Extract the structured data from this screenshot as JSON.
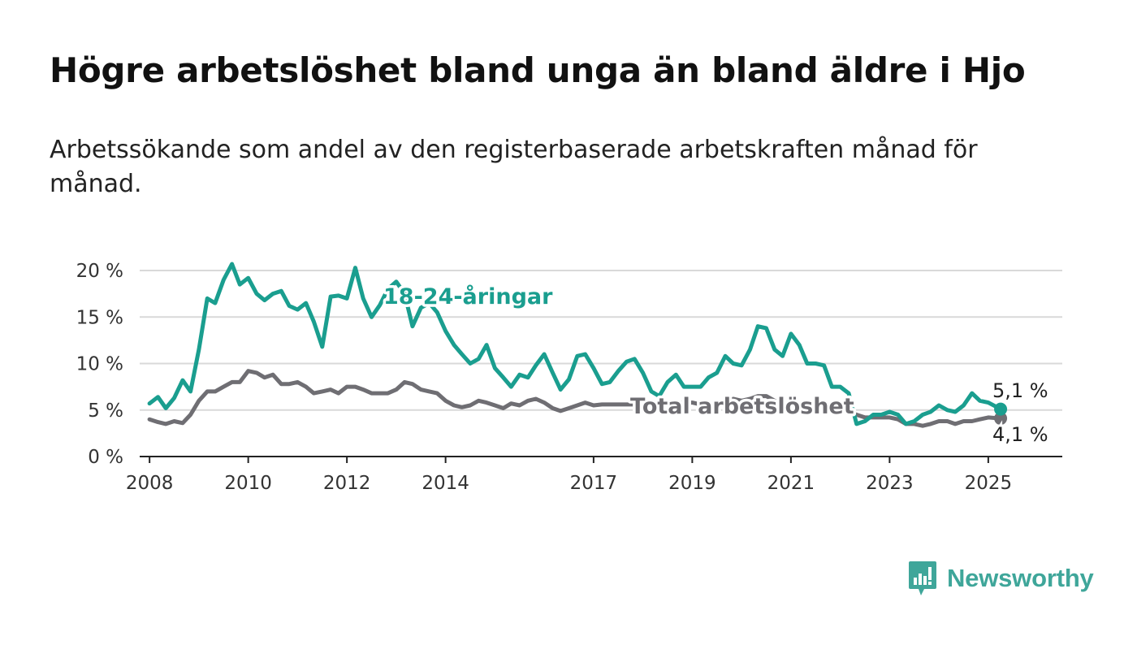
{
  "header": {
    "title": "Högre arbetslöshet bland unga än bland äldre i Hjo",
    "subtitle": "Arbetssökande som andel av den registerbaserade arbetskraften månad för månad."
  },
  "brand": {
    "name": "Newsworthy",
    "color": "#3fa69a",
    "icon": "bar-chart-speech-bubble-icon"
  },
  "chart_data": {
    "type": "line",
    "xlabel": "",
    "ylabel": "",
    "ylim": [
      0,
      20
    ],
    "xlim": [
      2007.8,
      2026.5
    ],
    "y_ticks": [
      {
        "value": 0,
        "label": "0 %"
      },
      {
        "value": 5,
        "label": "5 %"
      },
      {
        "value": 10,
        "label": "10 %"
      },
      {
        "value": 15,
        "label": "15 %"
      },
      {
        "value": 20,
        "label": "20 %"
      }
    ],
    "x_ticks": [
      {
        "value": 2008,
        "label": "2008"
      },
      {
        "value": 2010,
        "label": "2010"
      },
      {
        "value": 2012,
        "label": "2012"
      },
      {
        "value": 2014,
        "label": "2014"
      },
      {
        "value": 2017,
        "label": "2017"
      },
      {
        "value": 2019,
        "label": "2019"
      },
      {
        "value": 2021,
        "label": "2021"
      },
      {
        "value": 2023,
        "label": "2023"
      },
      {
        "value": 2025,
        "label": "2025"
      }
    ],
    "grid": true,
    "legend": "inline labels",
    "series": [
      {
        "name": "18-24-åringar",
        "color": "#1a9e8f",
        "end_label": "5,1 %",
        "x": [
          2008.0,
          2008.17,
          2008.33,
          2008.5,
          2008.67,
          2008.83,
          2009.0,
          2009.17,
          2009.33,
          2009.5,
          2009.67,
          2009.83,
          2010.0,
          2010.17,
          2010.33,
          2010.5,
          2010.67,
          2010.83,
          2011.0,
          2011.17,
          2011.33,
          2011.5,
          2011.67,
          2011.83,
          2012.0,
          2012.17,
          2012.33,
          2012.5,
          2012.67,
          2012.83,
          2013.0,
          2013.17,
          2013.33,
          2013.5,
          2013.67,
          2013.83,
          2014.0,
          2014.17,
          2014.33,
          2014.5,
          2014.67,
          2014.83,
          2015.0,
          2015.17,
          2015.33,
          2015.5,
          2015.67,
          2015.83,
          2016.0,
          2016.17,
          2016.33,
          2016.5,
          2016.67,
          2016.83,
          2017.0,
          2017.17,
          2017.33,
          2017.5,
          2017.67,
          2017.83,
          2018.0,
          2018.17,
          2018.33,
          2018.5,
          2018.67,
          2018.83,
          2019.0,
          2019.17,
          2019.33,
          2019.5,
          2019.67,
          2019.83,
          2020.0,
          2020.17,
          2020.33,
          2020.5,
          2020.67,
          2020.83,
          2021.0,
          2021.17,
          2021.33,
          2021.5,
          2021.67,
          2021.83,
          2022.0,
          2022.17,
          2022.33,
          2022.5,
          2022.67,
          2022.83,
          2023.0,
          2023.17,
          2023.33,
          2023.5,
          2023.67,
          2023.83,
          2024.0,
          2024.17,
          2024.33,
          2024.5,
          2024.67,
          2024.83,
          2025.0,
          2025.25
        ],
        "values": [
          5.7,
          6.4,
          5.2,
          6.3,
          8.2,
          7.0,
          11.5,
          17.0,
          16.5,
          19.0,
          20.7,
          18.5,
          19.2,
          17.5,
          16.8,
          17.5,
          17.8,
          16.2,
          15.8,
          16.5,
          14.5,
          11.8,
          17.2,
          17.3,
          17.0,
          20.3,
          17.0,
          15.0,
          16.3,
          18.0,
          18.8,
          17.5,
          14.0,
          16.0,
          16.5,
          15.5,
          13.5,
          12.0,
          11.0,
          10.0,
          10.5,
          12.0,
          9.5,
          8.5,
          7.5,
          8.8,
          8.5,
          9.8,
          11.0,
          9.0,
          7.2,
          8.3,
          10.8,
          11.0,
          9.5,
          7.8,
          8.0,
          9.2,
          10.2,
          10.5,
          9.0,
          7.0,
          6.5,
          8.0,
          8.8,
          7.5,
          7.5,
          7.5,
          8.5,
          9.0,
          10.8,
          10.0,
          9.8,
          11.5,
          14.0,
          13.8,
          11.5,
          10.8,
          13.2,
          12.0,
          10.0,
          10.0,
          9.8,
          7.5,
          7.5,
          6.8,
          3.5,
          3.8,
          4.5,
          4.5,
          4.8,
          4.5,
          3.5,
          3.8,
          4.5,
          4.8,
          5.5,
          5.0,
          4.8,
          5.5,
          6.8,
          6.0,
          5.8,
          5.1
        ]
      },
      {
        "name": "Total arbetslöshet",
        "color": "#6f6e73",
        "end_label": "4,1 %",
        "x": [
          2008.0,
          2008.17,
          2008.33,
          2008.5,
          2008.67,
          2008.83,
          2009.0,
          2009.17,
          2009.33,
          2009.5,
          2009.67,
          2009.83,
          2010.0,
          2010.17,
          2010.33,
          2010.5,
          2010.67,
          2010.83,
          2011.0,
          2011.17,
          2011.33,
          2011.5,
          2011.67,
          2011.83,
          2012.0,
          2012.17,
          2012.33,
          2012.5,
          2012.67,
          2012.83,
          2013.0,
          2013.17,
          2013.33,
          2013.5,
          2013.67,
          2013.83,
          2014.0,
          2014.17,
          2014.33,
          2014.5,
          2014.67,
          2014.83,
          2015.0,
          2015.17,
          2015.33,
          2015.5,
          2015.67,
          2015.83,
          2016.0,
          2016.17,
          2016.33,
          2016.5,
          2016.67,
          2016.83,
          2017.0,
          2017.17,
          2017.33,
          2017.5,
          2017.67,
          2017.83,
          2018.0,
          2018.17,
          2018.33,
          2018.5,
          2018.67,
          2018.83,
          2019.0,
          2019.17,
          2019.33,
          2019.5,
          2019.67,
          2019.83,
          2020.0,
          2020.17,
          2020.33,
          2020.5,
          2020.67,
          2020.83,
          2021.0,
          2021.17,
          2021.33,
          2021.5,
          2021.67,
          2021.83,
          2022.0,
          2022.17,
          2022.33,
          2022.5,
          2022.67,
          2022.83,
          2023.0,
          2023.17,
          2023.33,
          2023.5,
          2023.67,
          2023.83,
          2024.0,
          2024.17,
          2024.33,
          2024.5,
          2024.67,
          2024.83,
          2025.0,
          2025.25
        ],
        "values": [
          4.0,
          3.7,
          3.5,
          3.8,
          3.6,
          4.5,
          6.0,
          7.0,
          7.0,
          7.5,
          8.0,
          8.0,
          9.2,
          9.0,
          8.5,
          8.8,
          7.8,
          7.8,
          8.0,
          7.5,
          6.8,
          7.0,
          7.2,
          6.8,
          7.5,
          7.5,
          7.2,
          6.8,
          6.8,
          6.8,
          7.2,
          8.0,
          7.8,
          7.2,
          7.0,
          6.8,
          6.0,
          5.5,
          5.3,
          5.5,
          6.0,
          5.8,
          5.5,
          5.2,
          5.7,
          5.5,
          6.0,
          6.2,
          5.8,
          5.2,
          4.9,
          5.2,
          5.5,
          5.8,
          5.5,
          5.6,
          5.6,
          5.6,
          5.6,
          5.6,
          5.5,
          5.5,
          5.5,
          5.6,
          5.8,
          5.8,
          5.8,
          5.6,
          5.6,
          5.8,
          6.0,
          6.2,
          6.0,
          6.2,
          6.5,
          6.5,
          6.0,
          5.8,
          5.5,
          5.3,
          5.2,
          5.2,
          5.2,
          5.0,
          5.0,
          4.8,
          4.5,
          4.2,
          4.2,
          4.2,
          4.2,
          4.0,
          3.5,
          3.5,
          3.3,
          3.5,
          3.8,
          3.8,
          3.5,
          3.8,
          3.8,
          4.0,
          4.2,
          4.1
        ]
      }
    ]
  }
}
